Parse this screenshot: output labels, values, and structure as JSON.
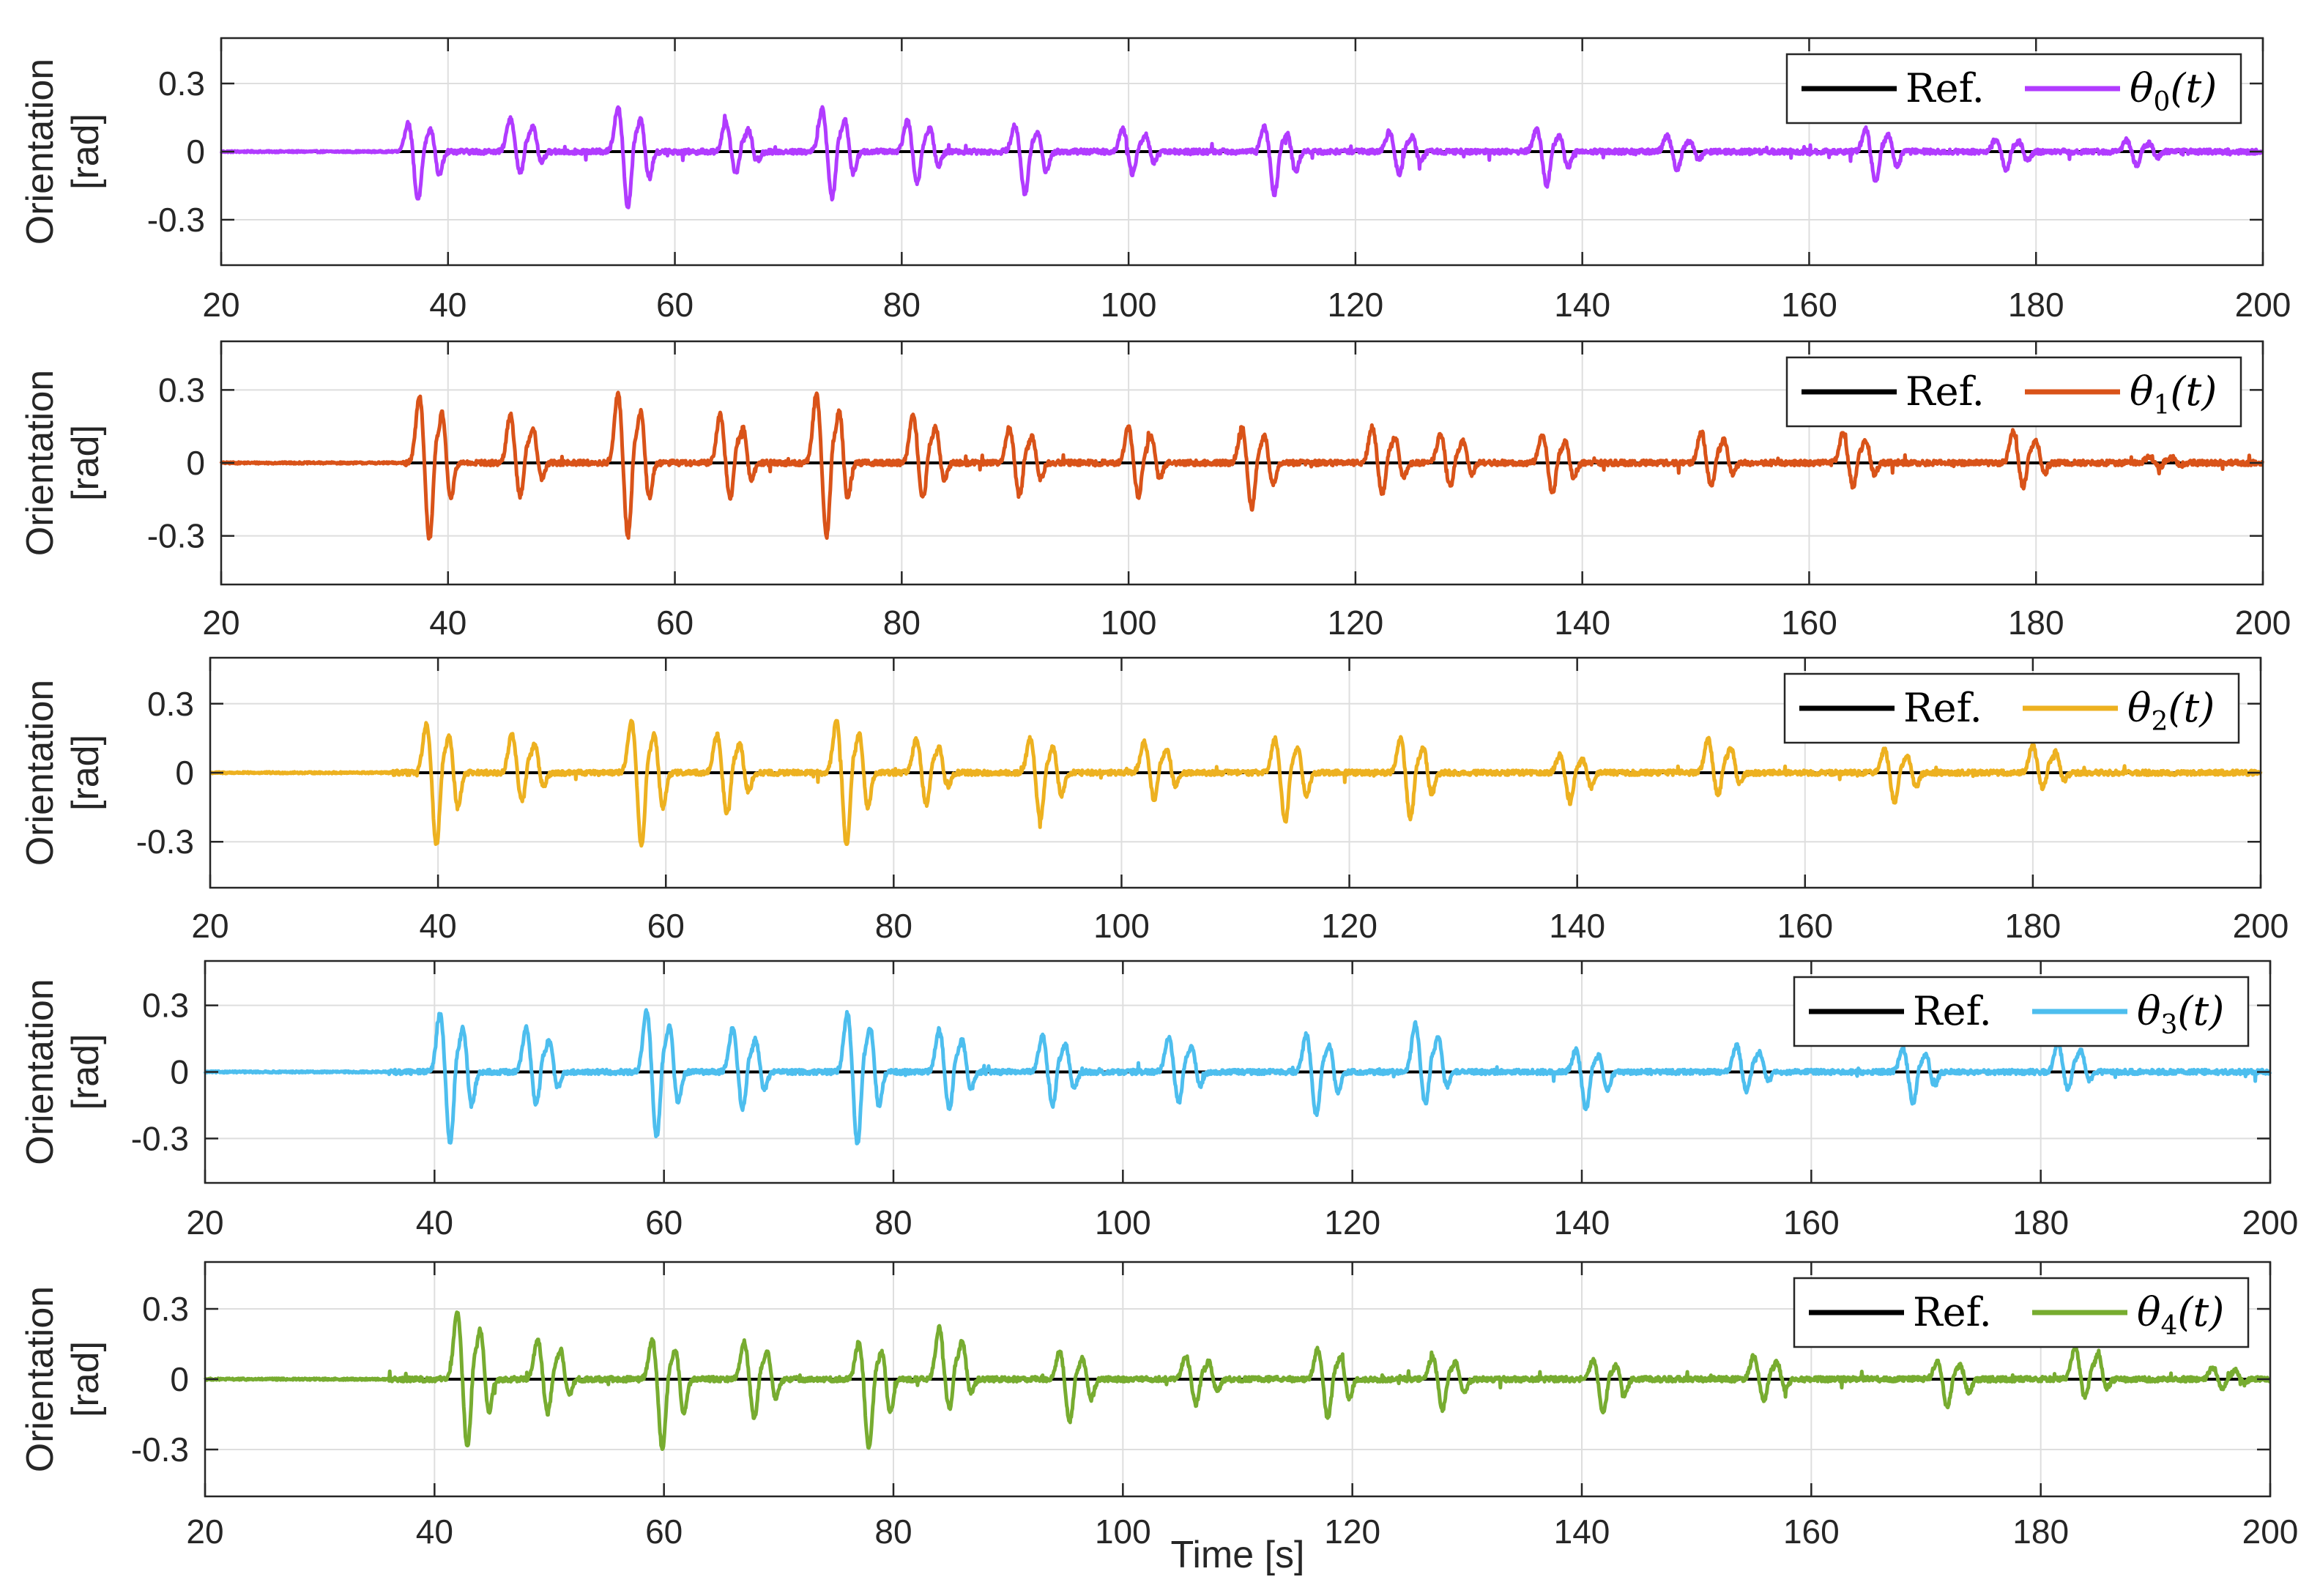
{
  "chart_data": [
    {
      "type": "line",
      "ylabel": "Orientation [rad]",
      "ylabel_lines": [
        "Orientation",
        "[rad]"
      ],
      "xlabel": "",
      "xlim": [
        20,
        200
      ],
      "ylim": [
        -0.5,
        0.5
      ],
      "xticks": [
        "20",
        "40",
        "60",
        "80",
        "100",
        "120",
        "140",
        "160",
        "180",
        "200"
      ],
      "yticks": [
        "0.3",
        "0",
        "-0.3"
      ],
      "grid": true,
      "legend_position": "top-right",
      "legend": [
        {
          "label": "Ref.",
          "color": "#000000"
        },
        {
          "label": "θ",
          "sub": "0",
          "arg": "(t)",
          "color": "#B13BFF"
        }
      ],
      "series": [
        {
          "name": "Ref.",
          "color": "#000000",
          "x": [
            20,
            200
          ],
          "y": [
            0,
            0
          ]
        },
        {
          "name": "θ0(t)",
          "color": "#B13BFF",
          "events": [
            [
              36.5,
              0.13,
              -0.22
            ],
            [
              45.5,
              0.15,
              -0.1
            ],
            [
              55.0,
              0.2,
              -0.25
            ],
            [
              64.5,
              0.13,
              -0.1
            ],
            [
              73.0,
              0.19,
              -0.21
            ],
            [
              80.5,
              0.14,
              -0.14
            ],
            [
              90.0,
              0.12,
              -0.19
            ],
            [
              99.5,
              0.1,
              -0.1
            ],
            [
              112.0,
              0.11,
              -0.19
            ],
            [
              123.0,
              0.09,
              -0.1
            ],
            [
              136.0,
              0.1,
              -0.15
            ],
            [
              147.5,
              0.07,
              -0.08
            ],
            [
              165.0,
              0.1,
              -0.14
            ],
            [
              176.5,
              0.06,
              -0.08
            ],
            [
              188.0,
              0.05,
              -0.06
            ]
          ]
        }
      ]
    },
    {
      "type": "line",
      "ylabel": "Orientation [rad]",
      "ylabel_lines": [
        "Orientation",
        "[rad]"
      ],
      "xlabel": "",
      "xlim": [
        20,
        200
      ],
      "ylim": [
        -0.5,
        0.5
      ],
      "xticks": [
        "20",
        "40",
        "60",
        "80",
        "100",
        "120",
        "140",
        "160",
        "180",
        "200"
      ],
      "yticks": [
        "0.3",
        "0",
        "-0.3"
      ],
      "grid": true,
      "legend_position": "top-right",
      "legend": [
        {
          "label": "Ref.",
          "color": "#000000"
        },
        {
          "label": "θ",
          "sub": "1",
          "arg": "(t)",
          "color": "#D95319"
        }
      ],
      "series": [
        {
          "name": "Ref.",
          "color": "#000000",
          "x": [
            20,
            200
          ],
          "y": [
            0,
            0
          ]
        },
        {
          "name": "θ1(t)",
          "color": "#D95319",
          "events": [
            [
              37.5,
              0.28,
              -0.32
            ],
            [
              45.5,
              0.2,
              -0.14
            ],
            [
              55.0,
              0.29,
              -0.31
            ],
            [
              64.0,
              0.2,
              -0.15
            ],
            [
              72.5,
              0.29,
              -0.31
            ],
            [
              81.0,
              0.2,
              -0.15
            ],
            [
              89.5,
              0.15,
              -0.14
            ],
            [
              100.0,
              0.15,
              -0.14
            ],
            [
              110.0,
              0.15,
              -0.19
            ],
            [
              121.5,
              0.15,
              -0.13
            ],
            [
              127.5,
              0.12,
              -0.1
            ],
            [
              136.5,
              0.12,
              -0.13
            ],
            [
              150.5,
              0.13,
              -0.1
            ],
            [
              163.0,
              0.13,
              -0.1
            ],
            [
              178.0,
              0.13,
              -0.1
            ],
            [
              190.0,
              0.03,
              -0.02
            ]
          ]
        }
      ]
    },
    {
      "type": "line",
      "ylabel": "Orientation [rad]",
      "ylabel_lines": [
        "Orientation",
        "[rad]"
      ],
      "xlabel": "",
      "xlim": [
        20,
        200
      ],
      "ylim": [
        -0.5,
        0.5
      ],
      "xticks": [
        "20",
        "40",
        "60",
        "80",
        "100",
        "120",
        "140",
        "160",
        "180",
        "200"
      ],
      "yticks": [
        "0.3",
        "0",
        "-0.3"
      ],
      "grid": true,
      "legend_position": "top-right",
      "legend": [
        {
          "label": "Ref.",
          "color": "#000000"
        },
        {
          "label": "θ",
          "sub": "2",
          "arg": "(t)",
          "color": "#EDB120"
        }
      ],
      "series": [
        {
          "name": "Ref.",
          "color": "#000000",
          "x": [
            20,
            200
          ],
          "y": [
            0,
            0
          ]
        },
        {
          "name": "θ2(t)",
          "color": "#EDB120",
          "events": [
            [
              39.0,
              0.22,
              -0.32
            ],
            [
              46.5,
              0.17,
              -0.13
            ],
            [
              57.0,
              0.23,
              -0.32
            ],
            [
              64.5,
              0.17,
              -0.18
            ],
            [
              75.0,
              0.23,
              -0.32
            ],
            [
              82.0,
              0.15,
              -0.14
            ],
            [
              92.0,
              0.15,
              -0.21
            ],
            [
              102.0,
              0.14,
              -0.12
            ],
            [
              113.5,
              0.15,
              -0.22
            ],
            [
              124.5,
              0.15,
              -0.2
            ],
            [
              138.5,
              0.08,
              -0.13
            ],
            [
              151.5,
              0.15,
              -0.1
            ],
            [
              167.0,
              0.1,
              -0.13
            ],
            [
              180.0,
              0.12,
              -0.07
            ]
          ]
        }
      ]
    },
    {
      "type": "line",
      "ylabel": "Orientation [rad]",
      "ylabel_lines": [
        "Orientation",
        "[rad]"
      ],
      "xlabel": "",
      "xlim": [
        20,
        200
      ],
      "ylim": [
        -0.5,
        0.5
      ],
      "xticks": [
        "20",
        "40",
        "60",
        "80",
        "100",
        "120",
        "140",
        "160",
        "180",
        "200"
      ],
      "yticks": [
        "0.3",
        "0",
        "-0.3"
      ],
      "grid": true,
      "legend_position": "top-right",
      "legend": [
        {
          "label": "Ref.",
          "color": "#000000"
        },
        {
          "label": "θ",
          "sub": "3",
          "arg": "(t)",
          "color": "#4DBEEE"
        }
      ],
      "series": [
        {
          "name": "Ref.",
          "color": "#000000",
          "x": [
            20,
            200
          ],
          "y": [
            0,
            0
          ]
        },
        {
          "name": "θ3(t)",
          "color": "#4DBEEE",
          "events": [
            [
              40.5,
              0.27,
              -0.33
            ],
            [
              48.0,
              0.2,
              -0.15
            ],
            [
              58.5,
              0.28,
              -0.3
            ],
            [
              66.0,
              0.2,
              -0.17
            ],
            [
              76.0,
              0.27,
              -0.33
            ],
            [
              84.0,
              0.2,
              -0.17
            ],
            [
              93.0,
              0.17,
              -0.16
            ],
            [
              104.0,
              0.16,
              -0.14
            ],
            [
              116.0,
              0.17,
              -0.2
            ],
            [
              125.5,
              0.22,
              -0.15
            ],
            [
              139.5,
              0.1,
              -0.17
            ],
            [
              153.5,
              0.12,
              -0.09
            ],
            [
              168.0,
              0.11,
              -0.14
            ],
            [
              181.5,
              0.13,
              -0.08
            ]
          ]
        }
      ]
    },
    {
      "type": "line",
      "ylabel": "Orientation [rad]",
      "ylabel_lines": [
        "Orientation",
        "[rad]"
      ],
      "xlabel": "Time [s]",
      "xlim": [
        20,
        200
      ],
      "ylim": [
        -0.5,
        0.5
      ],
      "xticks": [
        "20",
        "40",
        "60",
        "80",
        "100",
        "120",
        "140",
        "160",
        "180",
        "200"
      ],
      "yticks": [
        "0.3",
        "0",
        "-0.3"
      ],
      "grid": true,
      "legend_position": "top-right",
      "legend": [
        {
          "label": "Ref.",
          "color": "#000000"
        },
        {
          "label": "θ",
          "sub": "4",
          "arg": "(t)",
          "color": "#77AC30"
        }
      ],
      "series": [
        {
          "name": "Ref.",
          "color": "#000000",
          "x": [
            20,
            200
          ],
          "y": [
            0,
            0
          ]
        },
        {
          "name": "θ4(t)",
          "color": "#77AC30",
          "events": [
            [
              42.0,
              0.29,
              -0.3
            ],
            [
              49.0,
              0.17,
              -0.15
            ],
            [
              59.0,
              0.17,
              -0.3
            ],
            [
              67.0,
              0.16,
              -0.17
            ],
            [
              77.0,
              0.16,
              -0.3
            ],
            [
              84.0,
              0.22,
              -0.13
            ],
            [
              94.5,
              0.12,
              -0.18
            ],
            [
              105.5,
              0.1,
              -0.11
            ],
            [
              117.0,
              0.13,
              -0.17
            ],
            [
              127.0,
              0.1,
              -0.13
            ],
            [
              141.0,
              0.08,
              -0.14
            ],
            [
              155.0,
              0.1,
              -0.09
            ],
            [
              171.0,
              0.08,
              -0.12
            ],
            [
              183.0,
              0.14,
              -0.08
            ],
            [
              195.0,
              0.05,
              -0.04
            ]
          ]
        }
      ]
    }
  ]
}
